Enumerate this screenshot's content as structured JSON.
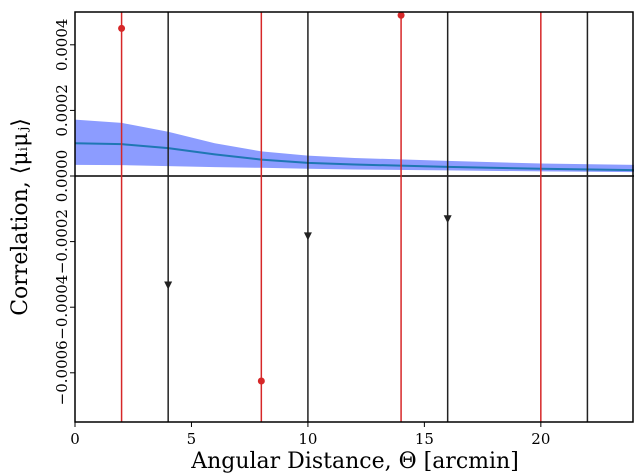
{
  "chart_data": {
    "type": "errorbar",
    "xlabel": "Angular Distance, Θ   [arcmin]",
    "ylabel": "Correlation, ⟨μᵢμⱼ⟩",
    "xlim": [
      0,
      24
    ],
    "xticks": [
      0,
      5,
      10,
      15,
      20
    ],
    "ylim": [
      -0.00075,
      0.0005
    ],
    "yticks": [
      {
        "value": -0.0006,
        "label": "−0.0006"
      },
      {
        "value": -0.0004,
        "label": "−0.0004"
      },
      {
        "value": -0.0002,
        "label": "−0.0002"
      },
      {
        "value": 0,
        "label": "0.0000"
      },
      {
        "value": 0.0002,
        "label": "0.0002"
      },
      {
        "value": 0.0004,
        "label": "0.0004"
      }
    ],
    "series": [
      {
        "marker": "circle",
        "color": "#d62728",
        "x": [
          2,
          8,
          14,
          20
        ],
        "values": [
          0.00045,
          -0.000625,
          0.00049,
          null
        ]
      },
      {
        "marker": "triangle",
        "color": "#222222",
        "x": [
          4,
          10,
          16,
          22
        ],
        "values": [
          -0.000334,
          -0.000184,
          -0.000132,
          null
        ]
      }
    ],
    "model": {
      "color": "#1f77b4",
      "band_color": "#8c9cff",
      "x": [
        0,
        2,
        4,
        6,
        8,
        10,
        12,
        16,
        20,
        24
      ],
      "mean": [
        0.0001,
        9.7e-05,
        8.5e-05,
        6.6e-05,
        5e-05,
        4e-05,
        3.5e-05,
        2.8e-05,
        2.2e-05,
        1.8e-05
      ],
      "upper": [
        0.000172,
        0.000162,
        0.000135,
        0.0001,
        7.5e-05,
        6.2e-05,
        5.5e-05,
        4.6e-05,
        3.8e-05,
        3.4e-05
      ],
      "lower": [
        3.4e-05,
        3.3e-05,
        3e-05,
        2.7e-05,
        2.5e-05,
        2.2e-05,
        2e-05,
        1.7e-05,
        1.4e-05,
        1.2e-05
      ]
    }
  }
}
